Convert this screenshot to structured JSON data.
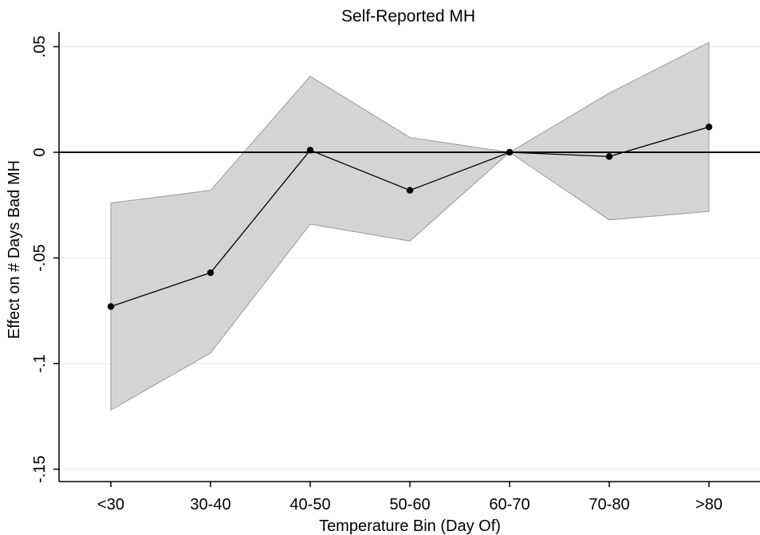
{
  "chart_data": {
    "type": "line",
    "title": "Self-Reported MH",
    "xlabel": "Temperature Bin (Day Of)",
    "ylabel": "Effect on # Days Bad MH",
    "categories": [
      "<30",
      "30-40",
      "40-50",
      "50-60",
      "60-70",
      "70-80",
      ">80"
    ],
    "series": [
      {
        "values": [
          -0.073,
          -0.057,
          0.001,
          -0.018,
          0.0,
          -0.002,
          0.012
        ],
        "ci_lower": [
          -0.122,
          -0.095,
          -0.034,
          -0.042,
          0.0,
          -0.032,
          -0.028
        ],
        "ci_upper": [
          -0.024,
          -0.018,
          0.036,
          0.007,
          0.0,
          0.028,
          0.052
        ]
      }
    ],
    "yticks": [
      0.05,
      0,
      -0.05,
      -0.1,
      -0.15
    ],
    "ytick_labels": [
      ".05",
      "0",
      "-.05",
      "-.1",
      "-.15"
    ],
    "ylim": [
      -0.155,
      0.058
    ],
    "reference_line_y": 0,
    "grid": true,
    "colors": {
      "ci_fill": "#d4d4d4",
      "ci_stroke": "#9a9a9a",
      "line": "#000000",
      "grid": "#eaf0f2"
    }
  }
}
